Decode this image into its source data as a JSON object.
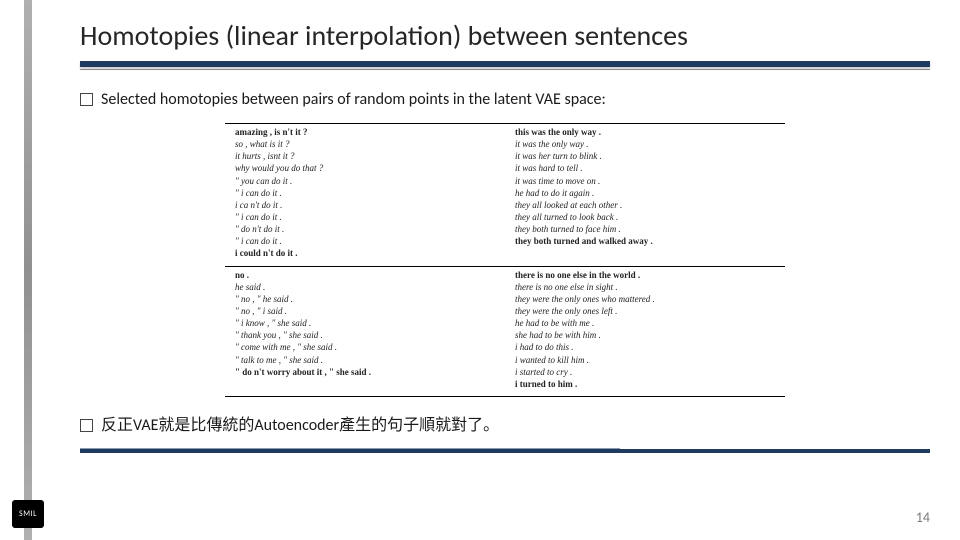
{
  "title": "Homotopies (linear interpolation) between sentences",
  "bullets": {
    "b1": "Selected homotopies between pairs of random points in the latent VAE space:",
    "b2": "反正VAE就是比傳統的Autoencoder產生的句子順就對了。"
  },
  "figure": {
    "top_left": [
      {
        "t": "amazing , is n't it ?",
        "b": true
      },
      {
        "t": "so , what is it ?",
        "i": true
      },
      {
        "t": "it hurts , isnt it ?",
        "i": true
      },
      {
        "t": "why would you do that ?",
        "i": true
      },
      {
        "t": "\" you can do it .",
        "i": true
      },
      {
        "t": "\" i can do it .",
        "i": true
      },
      {
        "t": "i ca n't do it .",
        "i": true
      },
      {
        "t": "\" i can do it .",
        "i": true
      },
      {
        "t": "\" do n't do it .",
        "i": true
      },
      {
        "t": "\" i can do it .",
        "i": true
      },
      {
        "t": "i could n't do it .",
        "b": true
      }
    ],
    "top_right": [
      {
        "t": "this was the only way .",
        "b": true
      },
      {
        "t": "it was the only way .",
        "i": true
      },
      {
        "t": "it was her turn to blink .",
        "i": true
      },
      {
        "t": "it was hard to tell .",
        "i": true
      },
      {
        "t": "it was time to move on .",
        "i": true
      },
      {
        "t": "he had to do it again .",
        "i": true
      },
      {
        "t": "they all looked at each other .",
        "i": true
      },
      {
        "t": "they all turned to look back .",
        "i": true
      },
      {
        "t": "they both turned to face him .",
        "i": true
      },
      {
        "t": "they both turned and walked away .",
        "b": true
      }
    ],
    "bot_left": [
      {
        "t": "no .",
        "b": true
      },
      {
        "t": "he said .",
        "i": true
      },
      {
        "t": "\" no , \" he said .",
        "i": true
      },
      {
        "t": "\" no , \" i said .",
        "i": true
      },
      {
        "t": "\" i know , \" she said .",
        "i": true
      },
      {
        "t": "\" thank you , \" she said .",
        "i": true
      },
      {
        "t": "\" come with me , \" she said .",
        "i": true
      },
      {
        "t": "\" talk to me , \" she said .",
        "i": true
      },
      {
        "t": "\" do n't worry about it , \" she said .",
        "b": true
      }
    ],
    "bot_right": [
      {
        "t": "there is no one else in the world .",
        "b": true
      },
      {
        "t": "there is no one else in sight .",
        "i": true
      },
      {
        "t": "they were the only ones who mattered .",
        "i": true
      },
      {
        "t": "they were the only ones left .",
        "i": true
      },
      {
        "t": "he had to be with me .",
        "i": true
      },
      {
        "t": "she had to be with him .",
        "i": true
      },
      {
        "t": "i had to do this .",
        "i": true
      },
      {
        "t": "i wanted to kill him .",
        "i": true
      },
      {
        "t": "i started to cry .",
        "i": true
      },
      {
        "t": "i turned to him .",
        "b": true
      }
    ]
  },
  "colors": {
    "accent": "#1f3a5f",
    "vbar": "#a0a0a0",
    "text": "#1a1a1a",
    "pagenum": "#7a7a7a"
  },
  "page_number": "14",
  "logo_text": "SMIL"
}
